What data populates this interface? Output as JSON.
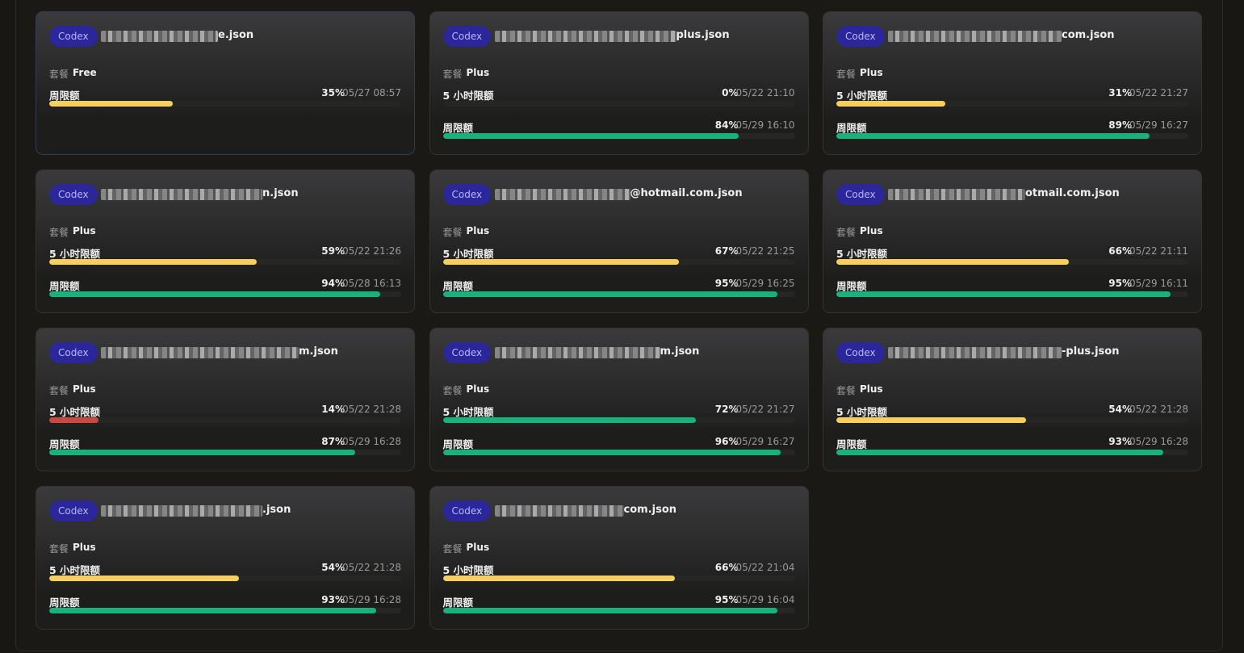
{
  "cards": [
    {
      "badge": "Codex",
      "name": "e.json",
      "plan_label": "套餐",
      "plan": "Free",
      "quotas": [
        {
          "label": "周限额",
          "percent": {
            "value": 35,
            "label": "35%"
          },
          "time": "05/27 08:57",
          "color": "#f7cf5d"
        }
      ]
    },
    {
      "badge": "Codex",
      "name": "plus.json",
      "plan_label": "套餐",
      "plan": "Plus",
      "quotas": [
        {
          "label": "5 小时限额",
          "percent": {
            "value": 0,
            "label": "0%"
          },
          "time": "05/22 21:10",
          "color": "#17b27e"
        },
        {
          "label": "周限额",
          "percent": {
            "value": 84,
            "label": "84%"
          },
          "time": "05/29 16:10",
          "color": "#17b27e"
        }
      ]
    },
    {
      "badge": "Codex",
      "name": "com.json",
      "plan_label": "套餐",
      "plan": "Plus",
      "quotas": [
        {
          "label": "5 小时限额",
          "percent": {
            "value": 31,
            "label": "31%"
          },
          "time": "05/22 21:27",
          "color": "#f7cf5d"
        },
        {
          "label": "周限额",
          "percent": {
            "value": 89,
            "label": "89%"
          },
          "time": "05/29 16:27",
          "color": "#17b27e"
        }
      ]
    },
    {
      "badge": "Codex",
      "name": "n.json",
      "plan_label": "套餐",
      "plan": "Plus",
      "quotas": [
        {
          "label": "5 小时限额",
          "percent": {
            "value": 59,
            "label": "59%"
          },
          "time": "05/22 21:26",
          "color": "#f7cf5d"
        },
        {
          "label": "周限额",
          "percent": {
            "value": 94,
            "label": "94%"
          },
          "time": "05/28 16:13",
          "color": "#17b27e"
        }
      ]
    },
    {
      "badge": "Codex",
      "name": "@hotmail.com.json",
      "plan_label": "套餐",
      "plan": "Plus",
      "quotas": [
        {
          "label": "5 小时限额",
          "percent": {
            "value": 67,
            "label": "67%"
          },
          "time": "05/22 21:25",
          "color": "#f7cf5d"
        },
        {
          "label": "周限额",
          "percent": {
            "value": 95,
            "label": "95%"
          },
          "time": "05/29 16:25",
          "color": "#17b27e"
        }
      ]
    },
    {
      "badge": "Codex",
      "name": "otmail.com.json",
      "plan_label": "套餐",
      "plan": "Plus",
      "quotas": [
        {
          "label": "5 小时限额",
          "percent": {
            "value": 66,
            "label": "66%"
          },
          "time": "05/22 21:11",
          "color": "#f7cf5d"
        },
        {
          "label": "周限额",
          "percent": {
            "value": 95,
            "label": "95%"
          },
          "time": "05/29 16:11",
          "color": "#17b27e"
        }
      ]
    },
    {
      "badge": "Codex",
      "name": "m.json",
      "plan_label": "套餐",
      "plan": "Plus",
      "quotas": [
        {
          "label": "5 小时限额",
          "percent": {
            "value": 14,
            "label": "14%"
          },
          "time": "05/22 21:28",
          "color": "#c8493f"
        },
        {
          "label": "周限额",
          "percent": {
            "value": 87,
            "label": "87%"
          },
          "time": "05/29 16:28",
          "color": "#17b27e"
        }
      ]
    },
    {
      "badge": "Codex",
      "name": "m.json",
      "plan_label": "套餐",
      "plan": "Plus",
      "quotas": [
        {
          "label": "5 小时限额",
          "percent": {
            "value": 72,
            "label": "72%"
          },
          "time": "05/22 21:27",
          "color": "#17b27e"
        },
        {
          "label": "周限额",
          "percent": {
            "value": 96,
            "label": "96%"
          },
          "time": "05/29 16:27",
          "color": "#17b27e"
        }
      ]
    },
    {
      "badge": "Codex",
      "name": "-plus.json",
      "plan_label": "套餐",
      "plan": "Plus",
      "quotas": [
        {
          "label": "5 小时限额",
          "percent": {
            "value": 54,
            "label": "54%"
          },
          "time": "05/22 21:28",
          "color": "#f7cf5d"
        },
        {
          "label": "周限额",
          "percent": {
            "value": 93,
            "label": "93%"
          },
          "time": "05/29 16:28",
          "color": "#17b27e"
        }
      ]
    },
    {
      "badge": "Codex",
      "name": ".json",
      "plan_label": "套餐",
      "plan": "Plus",
      "quotas": [
        {
          "label": "5 小时限额",
          "percent": {
            "value": 54,
            "label": "54%"
          },
          "time": "05/22 21:28",
          "color": "#f7cf5d"
        },
        {
          "label": "周限额",
          "percent": {
            "value": 93,
            "label": "93%"
          },
          "time": "05/29 16:28",
          "color": "#17b27e"
        }
      ]
    },
    {
      "badge": "Codex",
      "name": "com.json",
      "plan_label": "套餐",
      "plan": "Plus",
      "quotas": [
        {
          "label": "5 小时限额",
          "percent": {
            "value": 66,
            "label": "66%"
          },
          "time": "05/22 21:04",
          "color": "#f7cf5d"
        },
        {
          "label": "周限额",
          "percent": {
            "value": 95,
            "label": "95%"
          },
          "time": "05/29 16:04",
          "color": "#17b27e"
        }
      ]
    }
  ]
}
